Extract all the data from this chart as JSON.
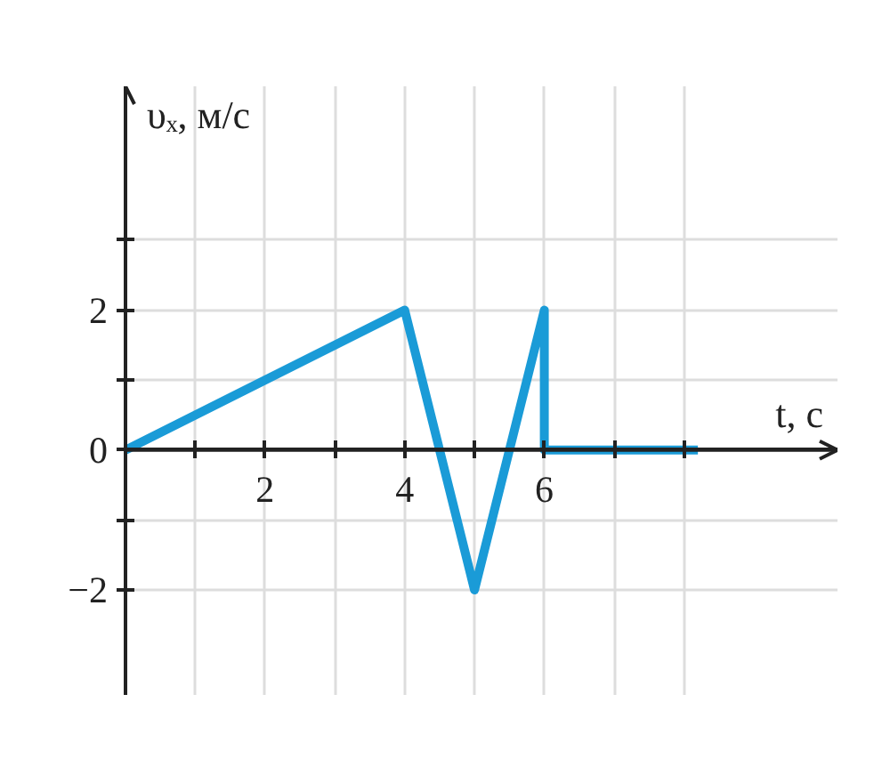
{
  "chart_data": {
    "type": "line",
    "xlabel": "t, с",
    "ylabel": "υₓ, м/с",
    "x": [
      0,
      4,
      5,
      6,
      6,
      8.2
    ],
    "series": [
      {
        "color": "#1a9bd7",
        "values": [
          0,
          2,
          -2,
          2,
          0,
          0
        ]
      }
    ],
    "xlim": [
      0,
      10.2
    ],
    "ylim": [
      -3.5,
      5.2
    ],
    "xticks": [
      {
        "value": 1,
        "label": null
      },
      2,
      {
        "value": 3,
        "label": null
      },
      4,
      {
        "value": 5,
        "label": null
      },
      6,
      {
        "value": 7,
        "label": null
      },
      {
        "value": 8,
        "label": null
      }
    ],
    "yticks": [
      {
        "value": -2,
        "label": "−2"
      },
      {
        "value": -1,
        "label": null
      },
      0,
      {
        "value": 1,
        "label": null
      },
      2,
      {
        "value": 3,
        "label": null
      }
    ],
    "grid": true,
    "marker": "none",
    "line_style": "solid"
  }
}
